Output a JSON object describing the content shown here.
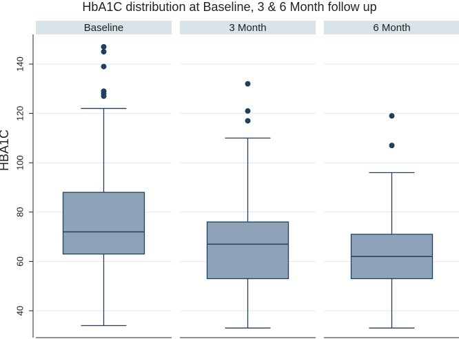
{
  "chart_data": {
    "type": "box",
    "title": "HbA1C distribution at Baseline, 3 & 6 Month follow up",
    "ylabel": "HBA1C",
    "ylim": [
      30,
      150
    ],
    "yticks": [
      40,
      60,
      80,
      100,
      120,
      140
    ],
    "grid": true,
    "panels": [
      {
        "label": "Baseline",
        "whisker_low": 34,
        "q1": 63,
        "median": 72,
        "q3": 88,
        "whisker_high": 122,
        "outliers": [
          127,
          128,
          129,
          139,
          145,
          147
        ]
      },
      {
        "label": "3 Month",
        "whisker_low": 33,
        "q1": 53,
        "median": 67,
        "q3": 76,
        "whisker_high": 110,
        "outliers": [
          117,
          121,
          132
        ]
      },
      {
        "label": "6 Month",
        "whisker_low": 33,
        "q1": 53,
        "median": 62,
        "q3": 71,
        "whisker_high": 96,
        "outliers": [
          107,
          119
        ]
      }
    ],
    "colors": {
      "box_fill": "#8fa3b8",
      "box_stroke": "#1f3f5c",
      "header_fill": "#d8e3ea",
      "grid": "#e3e9ee",
      "outlier": "#1f3f5c",
      "axis": "#222222"
    }
  }
}
